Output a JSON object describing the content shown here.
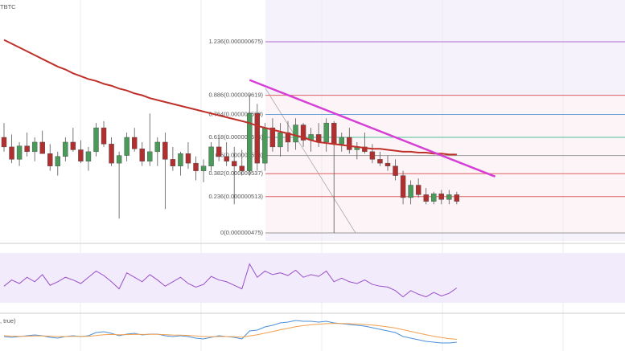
{
  "ticker_label": "TBTC",
  "chart_data": {
    "type": "candlestick",
    "ylim": [
      4.666e-07,
      7.187e-07
    ],
    "up_color": "#4a9a5a",
    "down_color": "#b0302f",
    "candles": [
      [
        5.75e-07,
        5.9e-07,
        5.6e-07,
        5.65e-07
      ],
      [
        5.65e-07,
        5.78e-07,
        5.48e-07,
        5.52e-07
      ],
      [
        5.52e-07,
        5.7e-07,
        5.45e-07,
        5.66e-07
      ],
      [
        5.66e-07,
        5.8e-07,
        5.55e-07,
        5.6e-07
      ],
      [
        5.6e-07,
        5.75e-07,
        5.5e-07,
        5.7e-07
      ],
      [
        5.7e-07,
        5.82e-07,
        5.6e-07,
        5.58e-07
      ],
      [
        5.58e-07,
        5.68e-07,
        5.4e-07,
        5.45e-07
      ],
      [
        5.45e-07,
        5.6e-07,
        5.35e-07,
        5.55e-07
      ],
      [
        5.55e-07,
        5.75e-07,
        5.5e-07,
        5.7e-07
      ],
      [
        5.7e-07,
        5.85e-07,
        5.6e-07,
        5.62e-07
      ],
      [
        5.62e-07,
        5.72e-07,
        5.48e-07,
        5.5e-07
      ],
      [
        5.5e-07,
        5.65e-07,
        5.4e-07,
        5.6e-07
      ],
      [
        5.6e-07,
        5.9e-07,
        5.55e-07,
        5.85e-07
      ],
      [
        5.85e-07,
        5.92e-07,
        5.65e-07,
        5.68e-07
      ],
      [
        5.68e-07,
        5.75e-07,
        5.45e-07,
        5.48e-07
      ],
      [
        5.48e-07,
        5.6e-07,
        4.9e-07,
        5.56e-07
      ],
      [
        5.56e-07,
        5.8e-07,
        5.5e-07,
        5.75e-07
      ],
      [
        5.75e-07,
        5.85e-07,
        5.6e-07,
        5.63e-07
      ],
      [
        5.63e-07,
        5.7e-07,
        5.45e-07,
        5.5e-07
      ],
      [
        5.5e-07,
        6e-07,
        5.45e-07,
        5.6e-07
      ],
      [
        5.6e-07,
        5.75e-07,
        5.45e-07,
        5.7e-07
      ],
      [
        5.7e-07,
        5.8e-07,
        5e-07,
        5.52e-07
      ],
      [
        5.52e-07,
        5.65e-07,
        5.4e-07,
        5.45e-07
      ],
      [
        5.45e-07,
        5.6e-07,
        5.35e-07,
        5.58e-07
      ],
      [
        5.58e-07,
        5.7e-07,
        5.42e-07,
        5.48e-07
      ],
      [
        5.48e-07,
        5.55e-07,
        5.3e-07,
        5.4e-07
      ],
      [
        5.4e-07,
        5.52e-07,
        5.28e-07,
        5.45e-07
      ],
      [
        5.45e-07,
        5.7e-07,
        5.4e-07,
        5.65e-07
      ],
      [
        5.65e-07,
        5.78e-07,
        5.5e-07,
        5.55e-07
      ],
      [
        5.55e-07,
        5.7e-07,
        5.45e-07,
        5.5e-07
      ],
      [
        5.5e-07,
        5.65e-07,
        5.05e-07,
        5.45e-07
      ],
      [
        5.45e-07,
        5.62e-07,
        5.35e-07,
        5.4e-07
      ],
      [
        5.4e-07,
        6.2e-07,
        5.35e-07,
        6e-07
      ],
      [
        6e-07,
        6.1e-07,
        5.4e-07,
        5.48e-07
      ],
      [
        5.48e-07,
        5.9e-07,
        5.4e-07,
        5.85e-07
      ],
      [
        5.85e-07,
        5.95e-07,
        5.6e-07,
        5.65e-07
      ],
      [
        5.65e-07,
        5.9e-07,
        5.55e-07,
        5.8e-07
      ],
      [
        5.8e-07,
        5.92e-07,
        5.6e-07,
        5.7e-07
      ],
      [
        5.7e-07,
        5.95e-07,
        5.62e-07,
        5.88e-07
      ],
      [
        5.88e-07,
        5.9e-07,
        5.65e-07,
        5.72e-07
      ],
      [
        5.72e-07,
        5.85e-07,
        5.6e-07,
        5.78e-07
      ],
      [
        5.78e-07,
        5.9e-07,
        5.65e-07,
        5.7e-07
      ],
      [
        5.7e-07,
        5.95e-07,
        5.6e-07,
        5.9e-07
      ],
      [
        5.9e-07,
        5.92e-07,
        4.75e-07,
        5.68e-07
      ],
      [
        5.68e-07,
        5.8e-07,
        5.6e-07,
        5.75e-07
      ],
      [
        5.75e-07,
        5.85e-07,
        5.58e-07,
        5.62e-07
      ],
      [
        5.62e-07,
        5.7e-07,
        5.52e-07,
        5.65e-07
      ],
      [
        5.65e-07,
        5.8e-07,
        5.58e-07,
        5.6e-07
      ],
      [
        5.6e-07,
        5.68e-07,
        5.48e-07,
        5.52e-07
      ],
      [
        5.52e-07,
        5.6e-07,
        5.45e-07,
        5.48e-07
      ],
      [
        5.48e-07,
        5.56e-07,
        5.4e-07,
        5.45e-07
      ],
      [
        5.45e-07,
        5.52e-07,
        5.3e-07,
        5.35e-07
      ],
      [
        5.35e-07,
        5.4e-07,
        5.05e-07,
        5.12e-07
      ],
      [
        5.12e-07,
        5.3e-07,
        5.05e-07,
        5.25e-07
      ],
      [
        5.25e-07,
        5.32e-07,
        5.12e-07,
        5.15e-07
      ],
      [
        5.15e-07,
        5.22e-07,
        5.05e-07,
        5.08e-07
      ],
      [
        5.08e-07,
        5.18e-07,
        5.05e-07,
        5.16e-07
      ],
      [
        5.16e-07,
        5.2e-07,
        5.05e-07,
        5.1e-07
      ],
      [
        5.1e-07,
        5.2e-07,
        5.05e-07,
        5.15e-07
      ],
      [
        5.15e-07,
        5.18e-07,
        5.05e-07,
        5.08e-07
      ]
    ],
    "moving_average": {
      "color": "#c0302a",
      "values": [
        6.77e-07,
        6.73e-07,
        6.69e-07,
        6.65e-07,
        6.61e-07,
        6.57e-07,
        6.53e-07,
        6.49e-07,
        6.46e-07,
        6.42e-07,
        6.39e-07,
        6.36e-07,
        6.34e-07,
        6.31e-07,
        6.29e-07,
        6.26e-07,
        6.24e-07,
        6.21e-07,
        6.19e-07,
        6.16e-07,
        6.14e-07,
        6.12e-07,
        6.1e-07,
        6.08e-07,
        6.06e-07,
        6.04e-07,
        6.02e-07,
        6e-07,
        5.98e-07,
        5.96e-07,
        5.94e-07,
        5.92e-07,
        5.9e-07,
        5.87e-07,
        5.85e-07,
        5.83e-07,
        5.81e-07,
        5.79e-07,
        5.77e-07,
        5.75e-07,
        5.72e-07,
        5.7e-07,
        5.69e-07,
        5.68e-07,
        5.67e-07,
        5.66e-07,
        5.65e-07,
        5.64e-07,
        5.63e-07,
        5.63e-07,
        5.62e-07,
        5.61e-07,
        5.6e-07,
        5.6e-07,
        5.59e-07,
        5.59e-07,
        5.58e-07,
        5.58e-07,
        5.57e-07,
        5.57e-07
      ]
    },
    "fib_levels": [
      {
        "label": "1.236(0.000000675)",
        "value": 6.75e-07,
        "color": "#b36ad1"
      },
      {
        "label": "0.886(0.000000619)",
        "value": 6.19e-07,
        "color": "#e06060"
      },
      {
        "label": "0.764(0.000000599)",
        "value": 5.99e-07,
        "color": "#6aa0d8"
      },
      {
        "label": "0.618(0.000000575)",
        "value": 5.75e-07,
        "color": "#4fbf9a"
      },
      {
        "label": "0.5(0.000000556)",
        "value": 5.56e-07,
        "color": "#999999"
      },
      {
        "label": "0.382(0.000000537)",
        "value": 5.37e-07,
        "color": "#e06060"
      },
      {
        "label": "0.236(0.000000513)",
        "value": 5.13e-07,
        "color": "#e06060"
      },
      {
        "label": "0(0.000000475)",
        "value": 4.75e-07,
        "color": "#999999"
      }
    ],
    "trend_line": {
      "color": "#d63fd6",
      "points": [
        {
          "index": 32,
          "value": 6.35e-07
        },
        {
          "index": 64,
          "value": 5.34e-07
        }
      ]
    },
    "rsi": {
      "color": "#9a4fc9",
      "ylim": [
        20,
        85
      ],
      "values": [
        45,
        52,
        48,
        55,
        50,
        58,
        46,
        50,
        55,
        52,
        48,
        55,
        62,
        57,
        50,
        42,
        60,
        55,
        50,
        58,
        52,
        45,
        50,
        55,
        48,
        44,
        47,
        56,
        52,
        50,
        46,
        42,
        70,
        55,
        62,
        58,
        60,
        57,
        63,
        55,
        58,
        56,
        62,
        50,
        54,
        50,
        48,
        52,
        47,
        45,
        44,
        40,
        33,
        40,
        36,
        33,
        38,
        34,
        37,
        43
      ]
    },
    "macd": {
      "label": ", true)",
      "ylim": [
        -2,
        2
      ],
      "macd_color": "#4a90d9",
      "signal_color": "#f0a050",
      "macd": [
        -0.5,
        -0.6,
        -0.5,
        -0.4,
        -0.3,
        -0.4,
        -0.6,
        -0.7,
        -0.5,
        -0.4,
        -0.5,
        -0.4,
        0.0,
        0.1,
        -0.1,
        -0.4,
        -0.2,
        -0.1,
        -0.3,
        -0.2,
        -0.2,
        -0.4,
        -0.5,
        -0.4,
        -0.5,
        -0.7,
        -0.8,
        -0.6,
        -0.4,
        -0.5,
        -0.6,
        -0.8,
        0.2,
        0.3,
        0.7,
        0.9,
        1.2,
        1.3,
        1.5,
        1.4,
        1.4,
        1.3,
        1.4,
        1.2,
        1.1,
        1.0,
        0.9,
        0.8,
        0.6,
        0.4,
        0.2,
        0.0,
        -0.5,
        -0.7,
        -0.9,
        -1.1,
        -1.2,
        -1.3,
        -1.3,
        -1.2
      ],
      "signal": [
        -0.4,
        -0.45,
        -0.47,
        -0.46,
        -0.43,
        -0.42,
        -0.45,
        -0.5,
        -0.5,
        -0.48,
        -0.48,
        -0.47,
        -0.38,
        -0.28,
        -0.24,
        -0.27,
        -0.26,
        -0.23,
        -0.24,
        -0.23,
        -0.22,
        -0.26,
        -0.31,
        -0.33,
        -0.36,
        -0.43,
        -0.5,
        -0.52,
        -0.5,
        -0.5,
        -0.52,
        -0.57,
        -0.42,
        -0.27,
        -0.08,
        0.12,
        0.34,
        0.53,
        0.72,
        0.86,
        0.97,
        1.04,
        1.11,
        1.13,
        1.13,
        1.1,
        1.06,
        1.0,
        0.92,
        0.82,
        0.7,
        0.56,
        0.35,
        0.14,
        -0.07,
        -0.28,
        -0.46,
        -0.63,
        -0.76,
        -0.85
      ]
    }
  }
}
